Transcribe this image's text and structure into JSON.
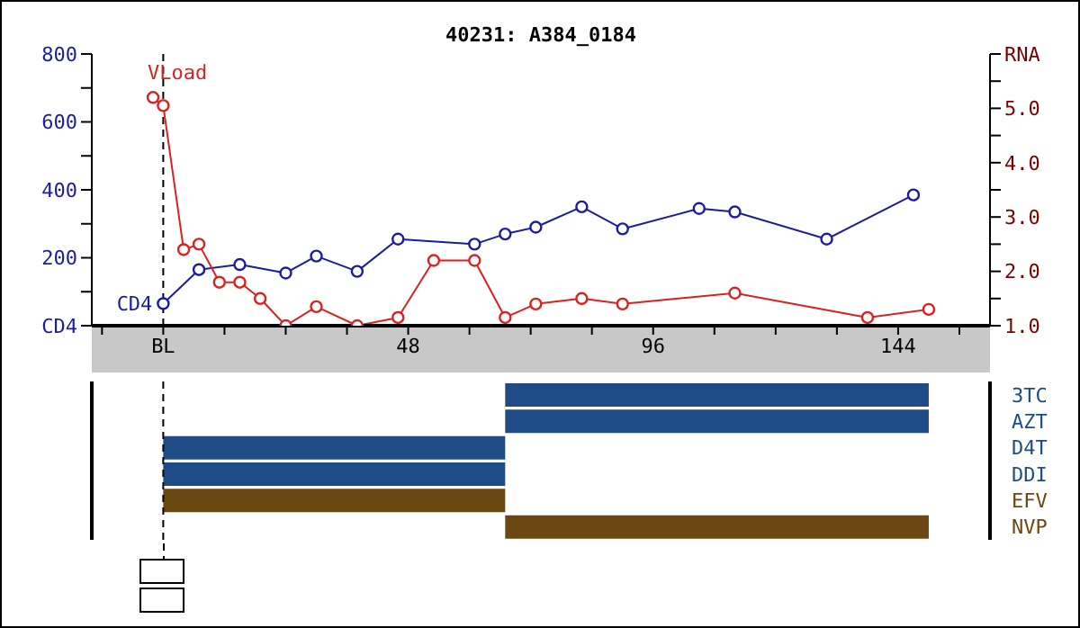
{
  "chart_data": [
    {
      "type": "line",
      "title": "40231: A384_0184",
      "xlim": [
        -14,
        162
      ],
      "xticks": [
        {
          "value": -12,
          "label": null
        },
        {
          "value": 0,
          "label": "BL"
        },
        {
          "value": 12,
          "label": null
        },
        {
          "value": 24,
          "label": null
        },
        {
          "value": 36,
          "label": null
        },
        48,
        {
          "value": 60,
          "label": null
        },
        {
          "value": 72,
          "label": null
        },
        {
          "value": 84,
          "label": null
        },
        96,
        {
          "value": 108,
          "label": null
        },
        {
          "value": 120,
          "label": null
        },
        {
          "value": 132,
          "label": null
        },
        144,
        {
          "value": 156,
          "label": null
        }
      ],
      "ylim": [
        0,
        800
      ],
      "yticks": [
        {
          "value": 0,
          "label": "CD4"
        },
        {
          "value": 100,
          "label": null
        },
        200,
        {
          "value": 300,
          "label": null
        },
        400,
        {
          "value": 500,
          "label": null
        },
        600,
        {
          "value": 700,
          "label": null
        },
        800
      ],
      "y2lim": [
        1,
        6
      ],
      "y2ticks": [
        {
          "value": 1,
          "label": "1.0"
        },
        {
          "value": 1.5,
          "label": null
        },
        {
          "value": 2,
          "label": "2.0"
        },
        {
          "value": 2.5,
          "label": null
        },
        {
          "value": 3,
          "label": "3.0"
        },
        {
          "value": 3.5,
          "label": null
        },
        {
          "value": 4,
          "label": "4.0"
        },
        {
          "value": 4.5,
          "label": null
        },
        {
          "value": 5,
          "label": "5.0"
        },
        {
          "value": 5.5,
          "label": null
        },
        {
          "value": 6,
          "label": "RNA"
        }
      ],
      "marker": "circle",
      "ref_lines": [
        {
          "axis": "x",
          "value": 0,
          "line_style": "dashed",
          "color": "#000000"
        }
      ],
      "series": [
        {
          "name": "CD4",
          "color": "#1c1ca0",
          "x": [
            0,
            7,
            15,
            24,
            30,
            38,
            46,
            61,
            67,
            73,
            82,
            90,
            105,
            112,
            130,
            147
          ],
          "values": [
            65,
            165,
            180,
            155,
            205,
            160,
            255,
            240,
            270,
            290,
            350,
            285,
            345,
            335,
            255,
            385
          ]
        },
        {
          "name": "VLoad",
          "color": "#dd2020",
          "axis": "y2",
          "x": [
            -2,
            0,
            4,
            7,
            11,
            15,
            19,
            24,
            30,
            38,
            46,
            53,
            61,
            67,
            73,
            82,
            90,
            112,
            138,
            150
          ],
          "values": [
            5.2,
            5.05,
            2.4,
            2.5,
            1.8,
            1.8,
            1.5,
            1.0,
            1.35,
            1.0,
            1.15,
            2.2,
            2.2,
            1.15,
            1.4,
            1.5,
            1.4,
            1.6,
            1.15,
            1.3
          ]
        }
      ]
    },
    {
      "type": "bar",
      "orientation": "horizontal",
      "categories": [
        "3TC",
        "AZT",
        "D4T",
        "DDI",
        "EFV",
        "NVP"
      ],
      "base": [
        67,
        67,
        0,
        0,
        0,
        67
      ],
      "values": [
        83,
        83,
        67,
        67,
        67,
        83
      ],
      "colors": [
        "#1f4b87",
        "#1f4b87",
        "#1f4b87",
        "#1f4b87",
        "#6b4712",
        "#6b4712"
      ],
      "xlim": [
        -14,
        162
      ],
      "tick_labels": "y",
      "ref_lines": [
        {
          "axis": "x",
          "value": 0,
          "line_style": "dashed",
          "color": "#000000"
        }
      ]
    }
  ]
}
